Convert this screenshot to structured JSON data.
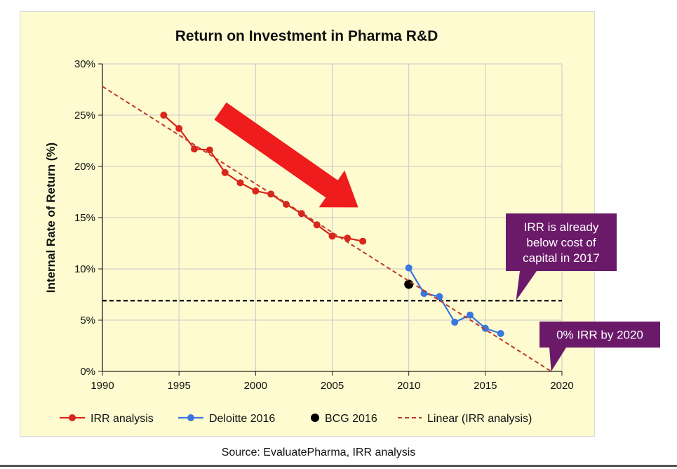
{
  "chart_data": {
    "type": "line",
    "title": "Return on Investment in Pharma R&D",
    "xlabel": "",
    "ylabel": "Internal Rate of Return (%)",
    "xlim": [
      1990,
      2020
    ],
    "ylim": [
      0,
      30
    ],
    "x_ticks": [
      1990,
      1995,
      2000,
      2005,
      2010,
      2015,
      2020
    ],
    "y_ticks": [
      0,
      5,
      10,
      15,
      20,
      25,
      30
    ],
    "y_tick_labels": [
      "0%",
      "5%",
      "10%",
      "15%",
      "20%",
      "25%",
      "30%"
    ],
    "grid": true,
    "series": [
      {
        "name": "IRR analysis",
        "color": "#d9261c",
        "marker": "circle",
        "x": [
          1994,
          1995,
          1996,
          1997,
          1998,
          1999,
          2000,
          2001,
          2002,
          2003,
          2004,
          2005,
          2006,
          2007
        ],
        "y": [
          25.0,
          23.7,
          21.7,
          21.6,
          19.4,
          18.4,
          17.6,
          17.3,
          16.3,
          15.4,
          14.3,
          13.2,
          13.0,
          12.7
        ]
      },
      {
        "name": "Deloitte 2016",
        "color": "#3a76e0",
        "marker": "circle",
        "x": [
          2010,
          2011,
          2012,
          2013,
          2014,
          2015,
          2016
        ],
        "y": [
          10.1,
          7.6,
          7.3,
          4.8,
          5.5,
          4.2,
          3.7
        ]
      },
      {
        "name": "BCG 2016",
        "color": "#000000",
        "marker": "circle",
        "x": [
          2010
        ],
        "y": [
          8.5
        ]
      },
      {
        "name": "Linear (IRR analysis)",
        "color": "#c0392b",
        "style": "dashed",
        "x": [
          1990,
          2019.3
        ],
        "y": [
          27.8,
          0
        ]
      }
    ],
    "reference_line": {
      "y": 6.9,
      "xlim": [
        1990,
        2020
      ],
      "style": "dashed",
      "color": "#000000"
    },
    "trend_arrow": {
      "from": [
        1997.7,
        25.4
      ],
      "to": [
        2006.7,
        16.0
      ],
      "color": "#ee1c1c"
    },
    "annotations": [
      {
        "text_lines": [
          "IRR is already",
          "below cost of",
          "capital in 2017"
        ],
        "color": "#6b1a6a",
        "points_to": [
          2017,
          6.9
        ],
        "placement": "right, above reference line"
      },
      {
        "text_lines": [
          "0% IRR by 2020"
        ],
        "color": "#6b1a6a",
        "points_to": [
          2019.3,
          0
        ],
        "placement": "right, above x-axis"
      }
    ],
    "legend_position": "bottom"
  },
  "source": "Source: EvaluatePharma,  IRR analysis"
}
